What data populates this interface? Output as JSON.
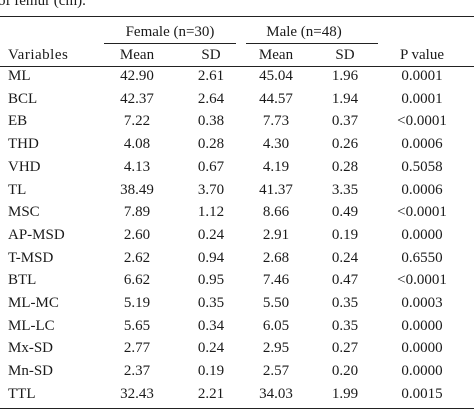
{
  "caption": "of femur (cm).",
  "groups": {
    "female": "Female (n=30)",
    "male": "Male (n=48)"
  },
  "columns": [
    "Variables",
    "Mean",
    "SD",
    "Mean",
    "SD",
    "P value"
  ],
  "rows": [
    [
      "ML",
      "42.90",
      "2.61",
      "45.04",
      "1.96",
      "0.0001"
    ],
    [
      "BCL",
      "42.37",
      "2.64",
      "44.57",
      "1.94",
      "0.0001"
    ],
    [
      "EB",
      "7.22",
      "0.38",
      "7.73",
      "0.37",
      "<0.0001"
    ],
    [
      "THD",
      "4.08",
      "0.28",
      "4.30",
      "0.26",
      "0.0006"
    ],
    [
      "VHD",
      "4.13",
      "0.67",
      "4.19",
      "0.28",
      "0.5058"
    ],
    [
      "TL",
      "38.49",
      "3.70",
      "41.37",
      "3.35",
      "0.0006"
    ],
    [
      "MSC",
      "7.89",
      "1.12",
      "8.66",
      "0.49",
      "<0.0001"
    ],
    [
      "AP-MSD",
      "2.60",
      "0.24",
      "2.91",
      "0.19",
      "0.0000"
    ],
    [
      "T-MSD",
      "2.62",
      "0.94",
      "2.68",
      "0.24",
      "0.6550"
    ],
    [
      "BTL",
      "6.62",
      "0.95",
      "7.46",
      "0.47",
      "<0.0001"
    ],
    [
      "ML-MC",
      "5.19",
      "0.35",
      "5.50",
      "0.35",
      "0.0003"
    ],
    [
      "ML-LC",
      "5.65",
      "0.34",
      "6.05",
      "0.35",
      "0.0000"
    ],
    [
      "Mx-SD",
      "2.77",
      "0.24",
      "2.95",
      "0.27",
      "0.0000"
    ],
    [
      "Mn-SD",
      "2.37",
      "0.19",
      "2.57",
      "0.20",
      "0.0000"
    ],
    [
      "TTL",
      "32.43",
      "2.21",
      "34.03",
      "1.99",
      "0.0015"
    ]
  ]
}
